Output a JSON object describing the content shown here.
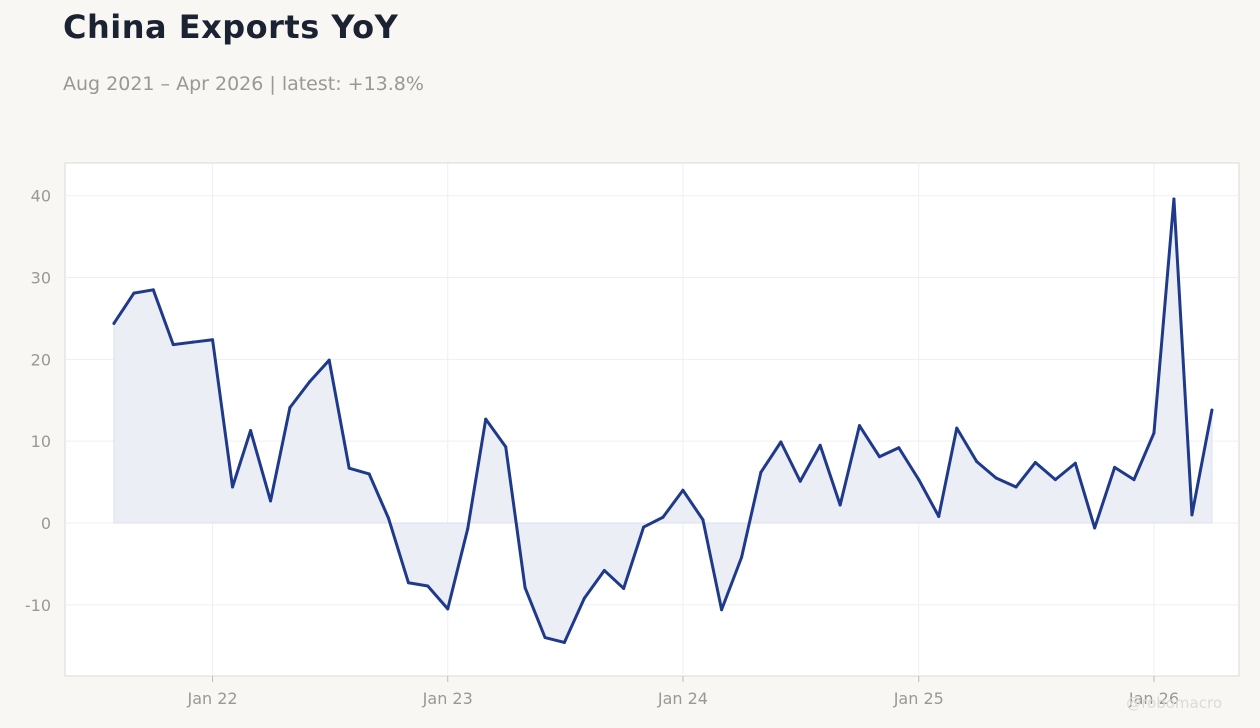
{
  "header": {
    "title": "China Exports YoY",
    "subtitle": "Aug 2021 – Apr 2026 | latest: +13.8%"
  },
  "watermark": "@robomacro",
  "colors": {
    "line": "#1f3a8a",
    "fill": "#eceef5",
    "grid": "#efefef",
    "plot_bg": "#ffffff",
    "page_bg": "#f8f7f4",
    "tick_text": "#9a9894"
  },
  "chart_data": {
    "type": "area",
    "title": "China Exports YoY",
    "subtitle": "Aug 2021 – Apr 2026 | latest: +13.8%",
    "xlabel": "",
    "ylabel": "",
    "grid": true,
    "ylim": [
      -18.7,
      44
    ],
    "xlim": [
      "2021-05-17",
      "2026-05-13"
    ],
    "x_ticks": [
      {
        "label": "Jan 22",
        "date": "2022-01-01"
      },
      {
        "label": "Jan 23",
        "date": "2023-01-01"
      },
      {
        "label": "Jan 24",
        "date": "2024-01-01"
      },
      {
        "label": "Jan 25",
        "date": "2025-01-01"
      },
      {
        "label": "Jan 26",
        "date": "2026-01-01"
      }
    ],
    "y_ticks": [
      -10,
      0,
      10,
      20,
      30,
      40
    ],
    "series": [
      {
        "x": [
          "2021-08",
          "2021-09",
          "2021-10",
          "2021-11",
          "2021-12",
          "2022-01",
          "2022-02",
          "2022-03",
          "2022-04",
          "2022-05",
          "2022-06",
          "2022-07",
          "2022-08",
          "2022-09",
          "2022-10",
          "2022-11",
          "2022-12",
          "2023-01",
          "2023-02",
          "2023-03",
          "2023-04",
          "2023-05",
          "2023-06",
          "2023-07",
          "2023-08",
          "2023-09",
          "2023-10",
          "2023-11",
          "2023-12",
          "2024-01",
          "2024-02",
          "2024-03",
          "2024-04",
          "2024-05",
          "2024-06",
          "2024-07",
          "2024-08",
          "2024-09",
          "2024-10",
          "2024-11",
          "2024-12",
          "2025-01",
          "2025-02",
          "2025-03",
          "2025-04",
          "2025-05",
          "2025-06",
          "2025-07",
          "2025-08",
          "2025-09",
          "2025-10",
          "2025-11",
          "2025-12",
          "2026-01",
          "2026-02",
          "2026-03",
          "2026-04"
        ],
        "values": [
          24.4,
          28.1,
          28.5,
          21.8,
          22.1,
          22.4,
          4.4,
          11.3,
          2.7,
          14.1,
          17.3,
          19.9,
          6.7,
          6.0,
          0.6,
          -7.3,
          -7.7,
          -10.5,
          -0.7,
          12.7,
          9.3,
          -7.9,
          -14.0,
          -14.6,
          -9.2,
          -5.8,
          -8.0,
          -0.5,
          0.7,
          4.0,
          0.4,
          -10.6,
          -4.2,
          6.2,
          9.9,
          5.1,
          9.5,
          2.2,
          11.9,
          8.1,
          9.2,
          5.3,
          0.8,
          11.6,
          7.5,
          5.5,
          4.4,
          7.4,
          5.3,
          7.3,
          -0.6,
          6.8,
          5.3,
          11.0,
          39.6,
          1.0,
          13.8
        ]
      }
    ]
  }
}
